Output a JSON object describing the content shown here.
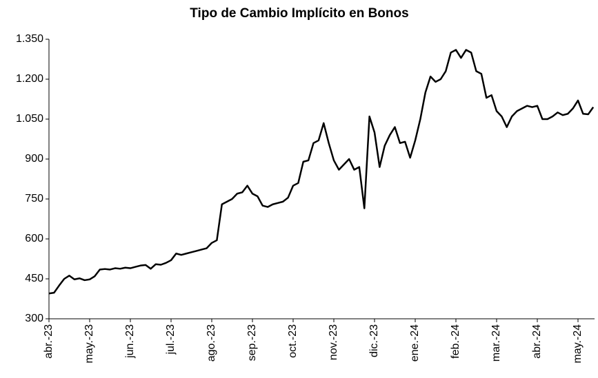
{
  "chart_data": {
    "type": "line",
    "title": "Tipo de Cambio Implícito en Bonos",
    "categories": [
      "abr.-23",
      null,
      null,
      null,
      null,
      null,
      null,
      null,
      "may.-23",
      null,
      null,
      null,
      null,
      null,
      null,
      null,
      "jun.-23",
      null,
      null,
      null,
      null,
      null,
      null,
      null,
      "jul.-23",
      null,
      null,
      null,
      null,
      null,
      null,
      null,
      "ago.-23",
      null,
      null,
      null,
      null,
      null,
      null,
      null,
      "sep.-23",
      null,
      null,
      null,
      null,
      null,
      null,
      null,
      "oct.-23",
      null,
      null,
      null,
      null,
      null,
      null,
      null,
      "nov.-23",
      null,
      null,
      null,
      null,
      null,
      null,
      null,
      "dic.-23",
      null,
      null,
      null,
      null,
      null,
      null,
      null,
      "ene.-24",
      null,
      null,
      null,
      null,
      null,
      null,
      null,
      "feb.-24",
      null,
      null,
      null,
      null,
      null,
      null,
      null,
      "mar.-24",
      null,
      null,
      null,
      null,
      null,
      null,
      null,
      "abr.-24",
      null,
      null,
      null,
      null,
      null,
      null,
      null,
      "may.-24",
      null,
      null,
      null
    ],
    "values": [
      395,
      398,
      425,
      450,
      462,
      448,
      452,
      445,
      448,
      460,
      485,
      487,
      485,
      490,
      488,
      492,
      490,
      495,
      500,
      502,
      488,
      505,
      503,
      510,
      520,
      545,
      540,
      545,
      550,
      555,
      560,
      565,
      585,
      595,
      730,
      740,
      750,
      770,
      775,
      800,
      770,
      760,
      725,
      720,
      730,
      735,
      740,
      755,
      800,
      810,
      890,
      895,
      960,
      970,
      1035,
      960,
      895,
      860,
      880,
      900,
      860,
      870,
      715,
      1060,
      1000,
      870,
      950,
      990,
      1020,
      960,
      965,
      905,
      970,
      1050,
      1150,
      1210,
      1190,
      1200,
      1230,
      1300,
      1310,
      1280,
      1310,
      1300,
      1230,
      1220,
      1130,
      1140,
      1080,
      1060,
      1020,
      1060,
      1080,
      1090,
      1100,
      1095,
      1100,
      1050,
      1050,
      1060,
      1075,
      1065,
      1070,
      1090,
      1120,
      1070,
      1068,
      1095
    ],
    "color": "#000000",
    "ylim": [
      300,
      1350
    ],
    "yticks": [
      300,
      450,
      600,
      750,
      900,
      {
        "value": 1050,
        "label": "1.050"
      },
      {
        "value": 1200,
        "label": "1.200"
      },
      {
        "value": 1350,
        "label": "1.350"
      }
    ]
  }
}
